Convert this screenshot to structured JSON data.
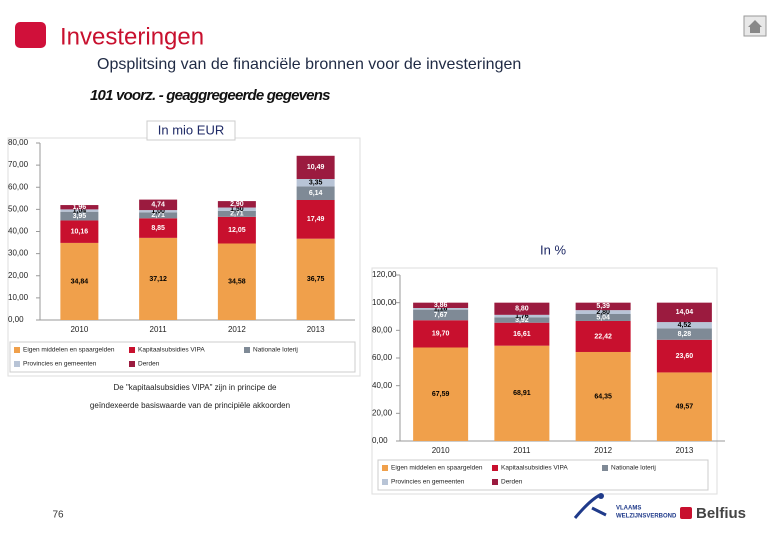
{
  "header": {
    "title": "Investeringen",
    "subtitle": "Opsplitsing van de financiële bronnen voor de investeringen",
    "dataset": "101 voorz. - geaggregeerde gegevens"
  },
  "chart_data": [
    {
      "type": "bar",
      "stacked": true,
      "title": "In mio EUR",
      "categories": [
        "2010",
        "2011",
        "2012",
        "2013"
      ],
      "series": [
        {
          "name": "Eigen middelen en spaargelden",
          "color": "#f0a04b",
          "label_color": "#000000",
          "values": [
            34.84,
            37.12,
            34.58,
            36.75
          ],
          "value_labels": [
            "34,84",
            "37,12",
            "34,58",
            "36,75"
          ]
        },
        {
          "name": "Kapitaalsubsidies VIPA",
          "color": "#c8102e",
          "label_color": "#ffffff",
          "values": [
            10.16,
            8.85,
            12.05,
            17.49
          ],
          "value_labels": [
            "10,16",
            "8,85",
            "12,05",
            "17,49"
          ]
        },
        {
          "name": "Nationale loterij",
          "color": "#7f8a96",
          "label_color": "#ffffff",
          "values": [
            3.95,
            2.71,
            2.71,
            6.14
          ],
          "value_labels": [
            "3,95",
            "2,71",
            "2,71",
            "6,14"
          ]
        },
        {
          "name": "Provincies en gemeenten",
          "color": "#b8c4d6",
          "label_color": "#000000",
          "values": [
            1.04,
            1.0,
            1.5,
            3.35
          ],
          "value_labels": [
            "1,04",
            "1,00",
            "1,50",
            "3,35"
          ]
        },
        {
          "name": "Derden",
          "color": "#9b1b3f",
          "label_color": "#ffffff",
          "values": [
            1.96,
            4.74,
            2.9,
            10.49
          ],
          "value_labels": [
            "1,96",
            "4,74",
            "2,90",
            "10,49"
          ]
        }
      ],
      "ylim": [
        0,
        80
      ],
      "yticks": [
        {
          "value": 0,
          "label": "0,00"
        },
        {
          "value": 10,
          "label": "10,00"
        },
        {
          "value": 20,
          "label": "20,00"
        },
        {
          "value": 30,
          "label": "30,00"
        },
        {
          "value": 40,
          "label": "40,00"
        },
        {
          "value": 50,
          "label": "50,00"
        },
        {
          "value": 60,
          "label": "60,00"
        },
        {
          "value": 70,
          "label": "70,00"
        },
        {
          "value": 80,
          "label": "80,00"
        }
      ],
      "grid": false
    },
    {
      "type": "bar",
      "stacked": true,
      "title": "In %",
      "categories": [
        "2010",
        "2011",
        "2012",
        "2013"
      ],
      "series": [
        {
          "name": "Eigen middelen en spaargelden",
          "color": "#f0a04b",
          "label_color": "#000000",
          "values": [
            67.59,
            68.91,
            64.35,
            49.57
          ],
          "value_labels": [
            "67,59",
            "68,91",
            "64,35",
            "49,57"
          ]
        },
        {
          "name": "Kapitaalsubsidies VIPA",
          "color": "#c8102e",
          "label_color": "#ffffff",
          "values": [
            19.7,
            16.61,
            22.42,
            23.6
          ],
          "value_labels": [
            "19,70",
            "16,61",
            "22,42",
            "23,60"
          ]
        },
        {
          "name": "Nationale loterij",
          "color": "#7f8a96",
          "label_color": "#ffffff",
          "values": [
            7.67,
            3.92,
            5.04,
            8.28
          ],
          "value_labels": [
            "7,67",
            "3,92",
            "5,04",
            "8,28"
          ]
        },
        {
          "name": "Provincies en gemeenten",
          "color": "#b8c4d6",
          "label_color": "#000000",
          "values": [
            1.18,
            1.76,
            2.8,
            4.52
          ],
          "value_labels": [
            "1,18",
            "1,76",
            "2,80",
            "4,52"
          ]
        },
        {
          "name": "Derden",
          "color": "#9b1b3f",
          "label_color": "#ffffff",
          "values": [
            3.86,
            8.8,
            5.39,
            14.04
          ],
          "value_labels": [
            "3,86",
            "8,80",
            "5,39",
            "14,04"
          ]
        }
      ],
      "ylim": [
        0,
        120
      ],
      "yticks": [
        {
          "value": 0,
          "label": "0,00"
        },
        {
          "value": 20,
          "label": "20,00"
        },
        {
          "value": 40,
          "label": "40,00"
        },
        {
          "value": 60,
          "label": "60,00"
        },
        {
          "value": 80,
          "label": "80,00"
        },
        {
          "value": 100,
          "label": "100,00"
        },
        {
          "value": 120,
          "label": "120,00"
        }
      ],
      "grid": false
    }
  ],
  "note": [
    "De \"kapitaalsubsidies VIPA\" zijn in principe de",
    "geïndexeerde basiswaarde van de principiële akkoorden"
  ],
  "footer": {
    "page_number": "76",
    "partner_line1": "VLAAMS",
    "partner_line2": "WELZIJNSVERBOND",
    "brand": "Belfius"
  }
}
